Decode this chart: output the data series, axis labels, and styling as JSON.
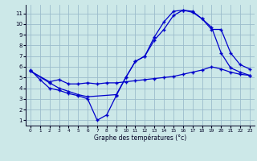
{
  "xlabel": "Graphe des températures (°c)",
  "background_color": "#cce8e8",
  "grid_color": "#9bbccc",
  "line_color": "#0000cc",
  "xlim": [
    -0.5,
    23.5
  ],
  "ylim": [
    0.5,
    11.8
  ],
  "xticks": [
    0,
    1,
    2,
    3,
    4,
    5,
    6,
    7,
    8,
    9,
    10,
    11,
    12,
    13,
    14,
    15,
    16,
    17,
    18,
    19,
    20,
    21,
    22,
    23
  ],
  "yticks": [
    1,
    2,
    3,
    4,
    5,
    6,
    7,
    8,
    9,
    10,
    11
  ],
  "line1_x": [
    0,
    1,
    2,
    3,
    4,
    5,
    6,
    7,
    8,
    9,
    10,
    11,
    12,
    13,
    14,
    15,
    16,
    17,
    18,
    19,
    20,
    21,
    22,
    23
  ],
  "line1_y": [
    5.7,
    4.8,
    4.0,
    3.8,
    3.5,
    3.3,
    3.0,
    1.0,
    1.5,
    3.3,
    5.0,
    6.5,
    7.0,
    8.8,
    10.2,
    11.2,
    11.3,
    11.1,
    10.5,
    9.7,
    7.3,
    5.9,
    5.5,
    5.2
  ],
  "line2_x": [
    0,
    2,
    3,
    4,
    5,
    6,
    7,
    8,
    9,
    10,
    11,
    12,
    13,
    14,
    15,
    16,
    17,
    18,
    19,
    20,
    21,
    22,
    23
  ],
  "line2_y": [
    5.6,
    4.6,
    4.8,
    4.4,
    4.4,
    4.5,
    4.4,
    4.5,
    4.5,
    4.6,
    4.7,
    4.8,
    4.9,
    5.0,
    5.1,
    5.3,
    5.5,
    5.7,
    6.0,
    5.8,
    5.5,
    5.3,
    5.2
  ],
  "line3_x": [
    0,
    2,
    3,
    4,
    5,
    6,
    9,
    10,
    11,
    12,
    13,
    14,
    15,
    16,
    17,
    18,
    19,
    20,
    21,
    22,
    23
  ],
  "line3_y": [
    5.6,
    4.5,
    4.0,
    3.7,
    3.4,
    3.2,
    3.4,
    5.0,
    6.5,
    7.0,
    8.5,
    9.5,
    10.8,
    11.3,
    11.2,
    10.5,
    9.5,
    9.5,
    7.3,
    6.2,
    5.8
  ]
}
